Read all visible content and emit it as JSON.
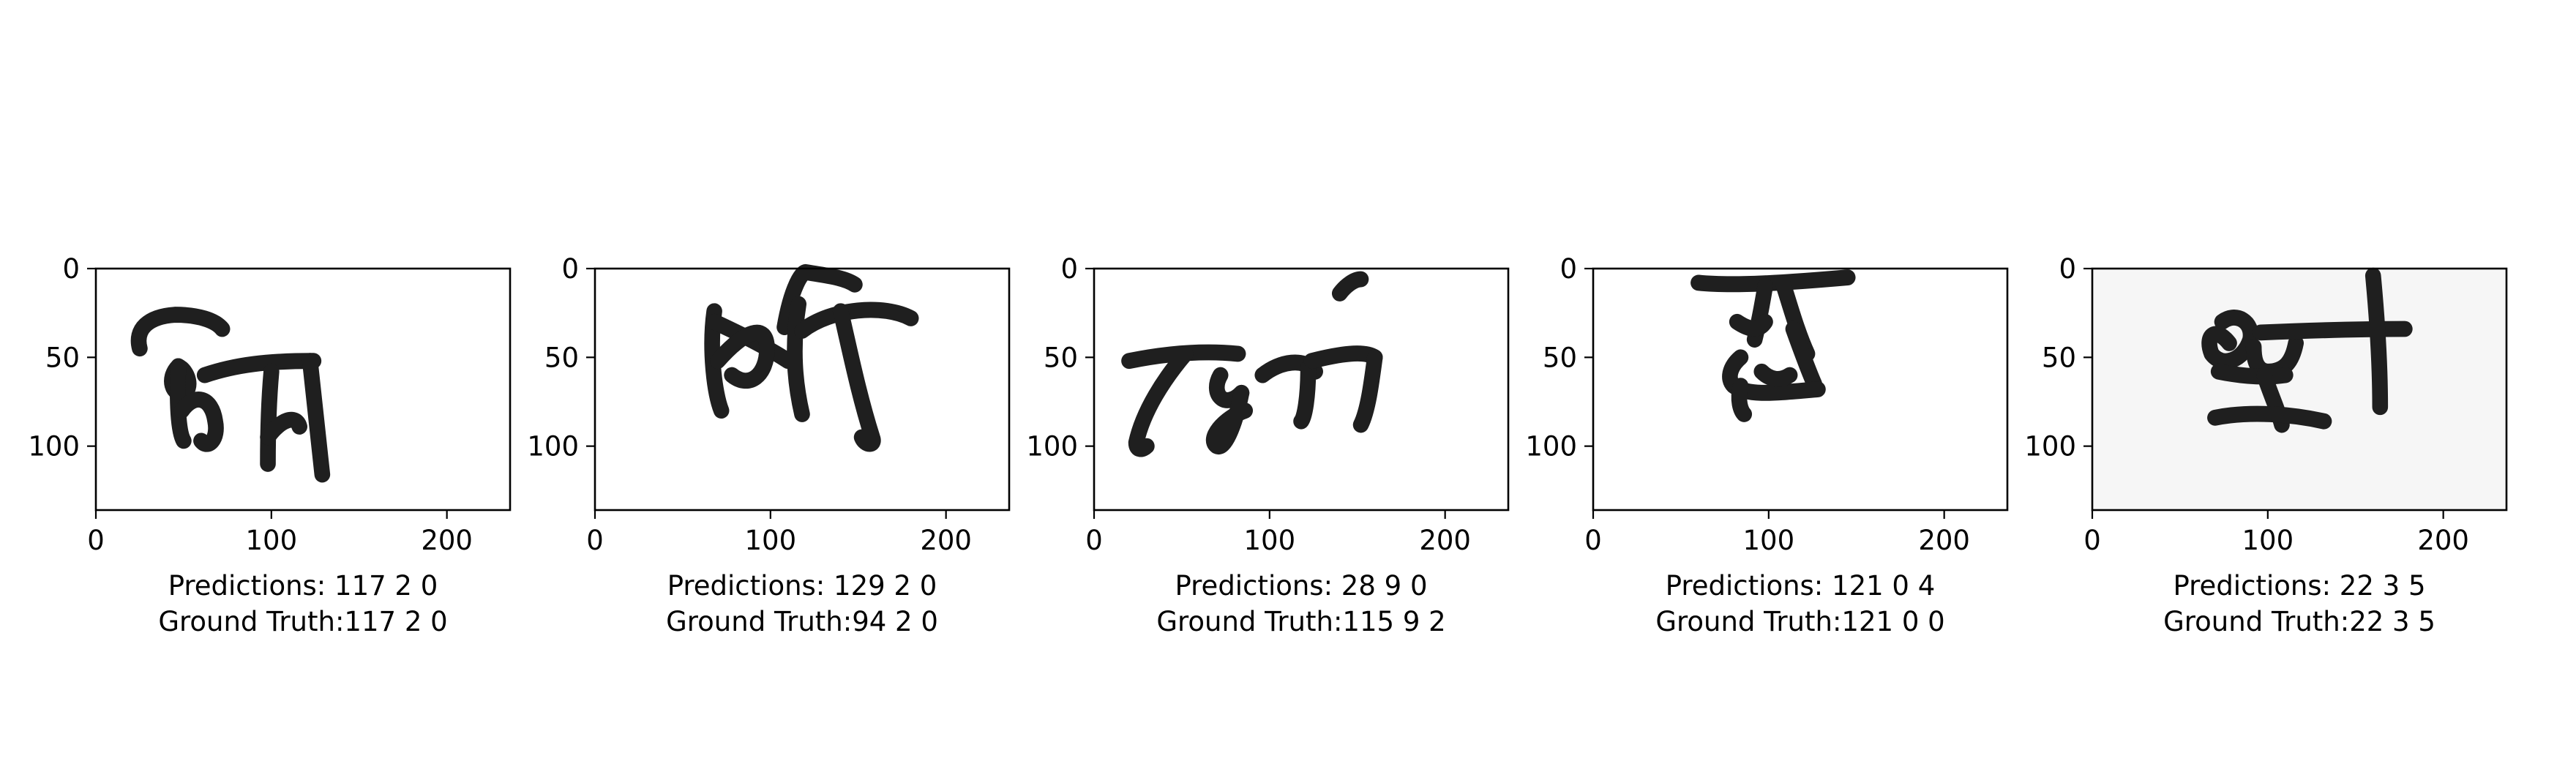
{
  "figure": {
    "description_free": true
  },
  "chart_data": [
    {
      "type": "image",
      "image_index": 1,
      "x_ticks": [
        0,
        100,
        200
      ],
      "y_ticks": [
        0,
        50,
        100
      ],
      "xlim": [
        0,
        236
      ],
      "ylim": [
        136,
        0
      ],
      "caption_predictions": "Predictions: 117 2 0",
      "caption_ground_truth": "Ground Truth:117 2 0",
      "predictions": [
        117,
        2,
        0
      ],
      "ground_truth": [
        117,
        2,
        0
      ],
      "ink_color": "#1f1f1f"
    },
    {
      "type": "image",
      "image_index": 2,
      "x_ticks": [
        0,
        100,
        200
      ],
      "y_ticks": [
        0,
        50,
        100
      ],
      "xlim": [
        0,
        236
      ],
      "ylim": [
        136,
        0
      ],
      "caption_predictions": "Predictions: 129 2 0",
      "caption_ground_truth": "Ground Truth:94 2 0",
      "predictions": [
        129,
        2,
        0
      ],
      "ground_truth": [
        94,
        2,
        0
      ],
      "ink_color": "#1f1f1f"
    },
    {
      "type": "image",
      "image_index": 3,
      "x_ticks": [
        0,
        100,
        200
      ],
      "y_ticks": [
        0,
        50,
        100
      ],
      "xlim": [
        0,
        236
      ],
      "ylim": [
        136,
        0
      ],
      "caption_predictions": "Predictions: 28 9 0",
      "caption_ground_truth": "Ground Truth:115 9 2",
      "predictions": [
        28,
        9,
        0
      ],
      "ground_truth": [
        115,
        9,
        2
      ],
      "ink_color": "#1f1f1f"
    },
    {
      "type": "image",
      "image_index": 4,
      "x_ticks": [
        0,
        100,
        200
      ],
      "y_ticks": [
        0,
        50,
        100
      ],
      "xlim": [
        0,
        236
      ],
      "ylim": [
        136,
        0
      ],
      "caption_predictions": "Predictions: 121 0 4",
      "caption_ground_truth": "Ground Truth:121 0 0",
      "predictions": [
        121,
        0,
        4
      ],
      "ground_truth": [
        121,
        0,
        0
      ],
      "ink_color": "#1f1f1f"
    },
    {
      "type": "image",
      "image_index": 5,
      "x_ticks": [
        0,
        100,
        200
      ],
      "y_ticks": [
        0,
        50,
        100
      ],
      "xlim": [
        0,
        236
      ],
      "ylim": [
        136,
        0
      ],
      "caption_predictions": "Predictions: 22 3 5",
      "caption_ground_truth": "Ground Truth:22 3 5",
      "predictions": [
        22,
        3,
        5
      ],
      "ground_truth": [
        22,
        3,
        5
      ],
      "ink_color": "#1f1f1f"
    }
  ]
}
